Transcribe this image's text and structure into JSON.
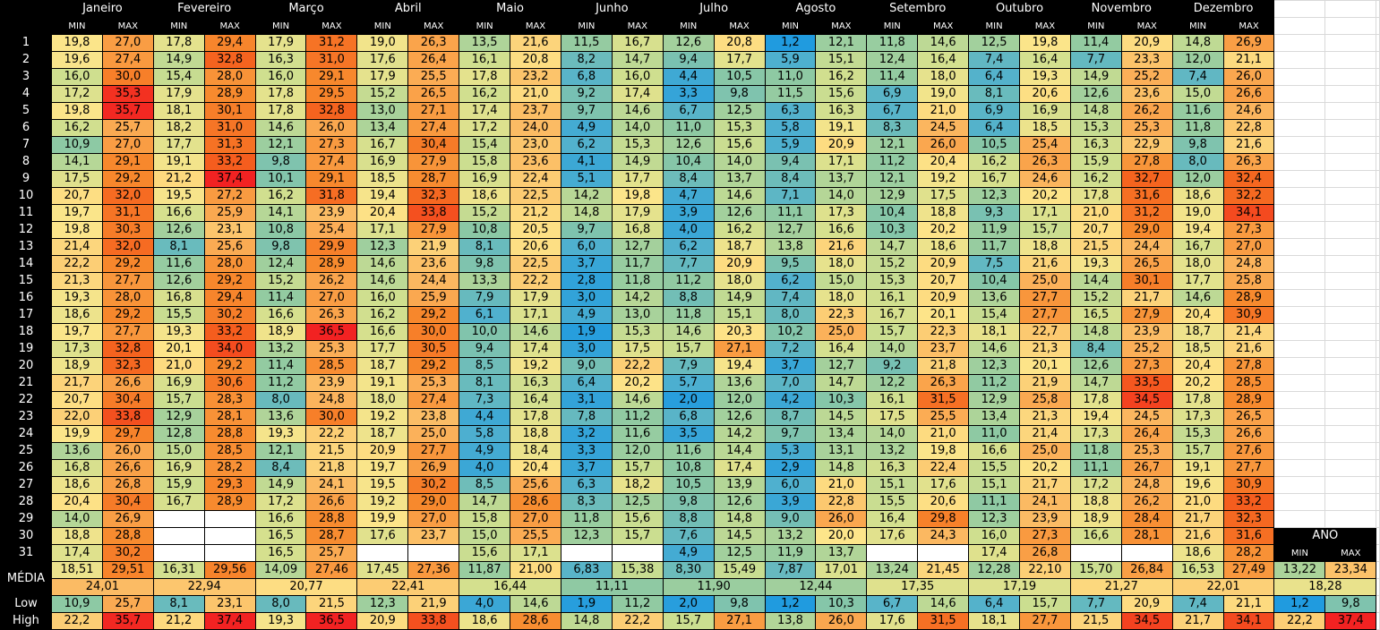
{
  "months": [
    "Janeiro",
    "Fevereiro",
    "Março",
    "Abril",
    "Maio",
    "Junho",
    "Julho",
    "Agosto",
    "Setembro",
    "Outubro",
    "Novembro",
    "Dezembro"
  ],
  "col_labels": [
    "MIN",
    "MAX"
  ],
  "days": [
    {
      "day": "1",
      "values": [
        "19,8",
        "27,0",
        "17,8",
        "29,4",
        "17,9",
        "31,2",
        "19,0",
        "26,3",
        "13,5",
        "21,6",
        "11,5",
        "16,7",
        "12,6",
        "20,8",
        "1,2",
        "12,1",
        "11,8",
        "14,6",
        "12,5",
        "19,8",
        "11,4",
        "20,9",
        "14,8",
        "26,9"
      ]
    },
    {
      "day": "2",
      "values": [
        "19,6",
        "27,4",
        "14,9",
        "32,8",
        "16,3",
        "31,0",
        "17,6",
        "26,4",
        "16,1",
        "20,8",
        "8,2",
        "14,7",
        "9,4",
        "17,7",
        "5,9",
        "15,1",
        "12,4",
        "16,4",
        "7,4",
        "16,4",
        "7,7",
        "23,3",
        "12,0",
        "21,1"
      ]
    },
    {
      "day": "3",
      "values": [
        "16,0",
        "30,0",
        "15,4",
        "28,0",
        "16,0",
        "29,1",
        "17,9",
        "25,5",
        "17,8",
        "23,2",
        "6,8",
        "16,0",
        "4,4",
        "10,5",
        "11,0",
        "16,2",
        "11,4",
        "18,0",
        "6,4",
        "19,3",
        "14,9",
        "25,2",
        "7,4",
        "26,0"
      ]
    },
    {
      "day": "4",
      "values": [
        "17,2",
        "35,3",
        "17,9",
        "28,9",
        "17,8",
        "29,5",
        "15,2",
        "26,5",
        "16,2",
        "21,0",
        "9,2",
        "17,4",
        "3,3",
        "9,8",
        "11,5",
        "15,6",
        "6,9",
        "19,0",
        "8,1",
        "20,6",
        "12,6",
        "23,6",
        "15,0",
        "26,6"
      ]
    },
    {
      "day": "5",
      "values": [
        "19,8",
        "35,7",
        "18,1",
        "30,1",
        "17,8",
        "32,8",
        "13,0",
        "27,1",
        "17,4",
        "23,7",
        "9,7",
        "14,6",
        "6,7",
        "12,5",
        "6,3",
        "16,3",
        "6,7",
        "21,0",
        "6,9",
        "16,9",
        "14,8",
        "26,2",
        "11,6",
        "24,6"
      ]
    },
    {
      "day": "6",
      "values": [
        "16,2",
        "25,7",
        "18,2",
        "31,0",
        "14,6",
        "26,0",
        "13,4",
        "27,4",
        "17,2",
        "24,0",
        "4,9",
        "14,0",
        "11,0",
        "15,3",
        "5,8",
        "19,1",
        "8,3",
        "24,5",
        "6,4",
        "18,5",
        "15,3",
        "25,3",
        "11,8",
        "22,8"
      ]
    },
    {
      "day": "7",
      "values": [
        "10,9",
        "27,0",
        "17,7",
        "31,3",
        "12,1",
        "27,3",
        "16,7",
        "30,4",
        "15,4",
        "23,0",
        "6,2",
        "15,3",
        "12,6",
        "15,6",
        "5,9",
        "20,9",
        "12,1",
        "26,0",
        "10,5",
        "25,4",
        "16,3",
        "22,9",
        "9,8",
        "21,6"
      ]
    },
    {
      "day": "8",
      "values": [
        "14,1",
        "29,1",
        "19,1",
        "33,2",
        "9,8",
        "27,4",
        "16,9",
        "27,9",
        "15,8",
        "23,6",
        "4,1",
        "14,9",
        "10,4",
        "14,0",
        "9,4",
        "17,1",
        "11,2",
        "20,4",
        "16,2",
        "26,3",
        "15,9",
        "27,8",
        "8,0",
        "26,3"
      ]
    },
    {
      "day": "9",
      "values": [
        "17,5",
        "29,2",
        "21,2",
        "37,4",
        "10,1",
        "29,1",
        "18,5",
        "28,7",
        "16,9",
        "22,4",
        "5,1",
        "17,7",
        "8,4",
        "13,7",
        "8,4",
        "13,7",
        "12,1",
        "19,2",
        "16,7",
        "24,6",
        "16,2",
        "32,7",
        "12,0",
        "32,4"
      ]
    },
    {
      "day": "10",
      "values": [
        "20,7",
        "32,0",
        "19,5",
        "27,2",
        "16,2",
        "31,8",
        "19,4",
        "32,3",
        "18,6",
        "22,5",
        "14,2",
        "19,8",
        "4,7",
        "14,6",
        "7,1",
        "14,0",
        "12,9",
        "17,5",
        "12,3",
        "20,2",
        "17,8",
        "31,6",
        "18,6",
        "32,2"
      ]
    },
    {
      "day": "11",
      "values": [
        "19,7",
        "31,1",
        "16,6",
        "25,9",
        "14,1",
        "23,9",
        "20,4",
        "33,8",
        "15,2",
        "21,2",
        "14,8",
        "17,9",
        "3,9",
        "12,6",
        "11,1",
        "17,3",
        "10,4",
        "18,8",
        "9,3",
        "17,1",
        "21,0",
        "31,2",
        "19,0",
        "34,1"
      ]
    },
    {
      "day": "12",
      "values": [
        "19,8",
        "30,3",
        "12,6",
        "23,1",
        "10,8",
        "25,4",
        "17,1",
        "27,9",
        "10,8",
        "20,5",
        "9,7",
        "16,8",
        "4,0",
        "16,2",
        "12,7",
        "16,6",
        "10,3",
        "20,2",
        "11,9",
        "15,7",
        "20,7",
        "29,0",
        "19,4",
        "27,3"
      ]
    },
    {
      "day": "13",
      "values": [
        "21,4",
        "32,0",
        "8,1",
        "25,6",
        "9,8",
        "29,9",
        "12,3",
        "21,9",
        "8,1",
        "20,6",
        "6,0",
        "12,7",
        "6,2",
        "18,7",
        "13,8",
        "21,6",
        "14,7",
        "18,6",
        "11,7",
        "18,8",
        "21,5",
        "24,4",
        "16,7",
        "27,0"
      ]
    },
    {
      "day": "14",
      "values": [
        "22,2",
        "29,2",
        "11,6",
        "28,0",
        "12,4",
        "28,9",
        "14,6",
        "23,6",
        "9,8",
        "22,5",
        "3,7",
        "11,7",
        "7,7",
        "20,9",
        "9,5",
        "18,0",
        "15,2",
        "20,9",
        "7,5",
        "21,6",
        "19,3",
        "26,5",
        "18,0",
        "24,8"
      ]
    },
    {
      "day": "15",
      "values": [
        "21,3",
        "27,7",
        "12,6",
        "29,2",
        "15,2",
        "26,2",
        "14,6",
        "24,4",
        "13,3",
        "22,2",
        "2,8",
        "11,8",
        "11,2",
        "18,0",
        "6,2",
        "15,0",
        "15,3",
        "20,7",
        "10,4",
        "25,0",
        "14,4",
        "30,1",
        "17,7",
        "25,8"
      ]
    },
    {
      "day": "16",
      "values": [
        "19,3",
        "28,0",
        "16,8",
        "29,4",
        "11,4",
        "27,0",
        "16,0",
        "25,9",
        "7,9",
        "17,9",
        "3,0",
        "14,2",
        "8,8",
        "14,9",
        "7,4",
        "18,0",
        "16,1",
        "20,9",
        "13,6",
        "27,7",
        "15,2",
        "21,7",
        "14,6",
        "28,9"
      ]
    },
    {
      "day": "17",
      "values": [
        "18,6",
        "29,2",
        "15,5",
        "30,2",
        "16,6",
        "26,3",
        "16,2",
        "29,2",
        "6,1",
        "17,1",
        "4,9",
        "13,0",
        "11,8",
        "15,1",
        "8,0",
        "22,3",
        "16,7",
        "20,1",
        "15,4",
        "27,7",
        "16,5",
        "27,9",
        "20,4",
        "30,9"
      ]
    },
    {
      "day": "18",
      "values": [
        "19,7",
        "27,7",
        "19,3",
        "33,2",
        "18,9",
        "36,5",
        "16,6",
        "30,0",
        "10,0",
        "14,6",
        "1,9",
        "15,3",
        "14,6",
        "20,3",
        "10,2",
        "25,0",
        "15,7",
        "22,3",
        "18,1",
        "22,7",
        "14,8",
        "23,9",
        "18,7",
        "21,4"
      ]
    },
    {
      "day": "19",
      "values": [
        "17,3",
        "32,8",
        "20,1",
        "34,0",
        "13,2",
        "25,3",
        "17,7",
        "30,5",
        "9,4",
        "17,4",
        "3,0",
        "17,5",
        "15,7",
        "27,1",
        "7,2",
        "16,4",
        "14,0",
        "23,7",
        "14,6",
        "21,3",
        "8,4",
        "25,2",
        "18,5",
        "21,6"
      ]
    },
    {
      "day": "20",
      "values": [
        "18,9",
        "32,3",
        "21,0",
        "29,2",
        "11,4",
        "28,5",
        "18,7",
        "29,2",
        "8,5",
        "19,2",
        "9,0",
        "22,2",
        "7,9",
        "19,4",
        "3,7",
        "12,7",
        "9,2",
        "21,8",
        "12,3",
        "20,1",
        "12,6",
        "27,3",
        "20,4",
        "27,8"
      ]
    },
    {
      "day": "21",
      "values": [
        "21,7",
        "26,6",
        "16,9",
        "30,6",
        "11,2",
        "23,9",
        "19,1",
        "25,3",
        "8,1",
        "16,3",
        "6,4",
        "20,2",
        "5,7",
        "13,6",
        "7,0",
        "14,7",
        "12,2",
        "26,3",
        "11,2",
        "21,9",
        "14,7",
        "33,5",
        "20,2",
        "28,5"
      ]
    },
    {
      "day": "22",
      "values": [
        "20,7",
        "30,4",
        "15,7",
        "28,3",
        "8,0",
        "24,8",
        "18,0",
        "27,4",
        "7,3",
        "16,4",
        "3,1",
        "14,6",
        "2,0",
        "12,0",
        "4,2",
        "10,3",
        "16,1",
        "31,5",
        "12,9",
        "25,8",
        "17,8",
        "34,5",
        "17,8",
        "28,9"
      ]
    },
    {
      "day": "23",
      "values": [
        "22,0",
        "33,8",
        "12,9",
        "28,1",
        "13,6",
        "30,0",
        "19,2",
        "23,8",
        "4,4",
        "17,8",
        "7,8",
        "11,2",
        "6,8",
        "12,6",
        "8,7",
        "14,5",
        "17,5",
        "25,5",
        "13,4",
        "21,3",
        "19,4",
        "24,5",
        "17,3",
        "26,5"
      ]
    },
    {
      "day": "24",
      "values": [
        "19,9",
        "29,7",
        "12,8",
        "28,8",
        "19,3",
        "22,2",
        "18,7",
        "25,0",
        "5,8",
        "18,8",
        "3,2",
        "11,6",
        "3,5",
        "14,2",
        "9,7",
        "13,4",
        "14,0",
        "21,0",
        "11,0",
        "21,4",
        "17,3",
        "26,4",
        "15,3",
        "26,6"
      ]
    },
    {
      "day": "25",
      "values": [
        "13,6",
        "26,0",
        "15,0",
        "28,5",
        "12,1",
        "21,5",
        "20,9",
        "27,7",
        "4,9",
        "18,4",
        "3,3",
        "12,0",
        "11,6",
        "14,4",
        "5,3",
        "13,1",
        "13,2",
        "19,8",
        "16,6",
        "25,0",
        "11,8",
        "25,3",
        "15,7",
        "27,6"
      ]
    },
    {
      "day": "26",
      "values": [
        "16,8",
        "26,6",
        "16,9",
        "28,2",
        "8,4",
        "21,8",
        "19,7",
        "26,9",
        "4,0",
        "20,4",
        "3,7",
        "15,7",
        "10,8",
        "17,4",
        "2,9",
        "14,8",
        "16,3",
        "22,4",
        "15,5",
        "20,2",
        "11,1",
        "26,7",
        "19,1",
        "27,7"
      ]
    },
    {
      "day": "27",
      "values": [
        "18,6",
        "26,8",
        "15,9",
        "29,3",
        "14,9",
        "24,1",
        "19,5",
        "30,2",
        "8,5",
        "25,6",
        "6,3",
        "18,2",
        "10,5",
        "13,9",
        "6,0",
        "21,0",
        "15,1",
        "17,6",
        "15,1",
        "21,7",
        "17,2",
        "24,8",
        "19,6",
        "30,9"
      ]
    },
    {
      "day": "28",
      "values": [
        "20,4",
        "30,4",
        "16,7",
        "28,9",
        "17,2",
        "26,6",
        "19,2",
        "29,0",
        "14,7",
        "28,6",
        "8,3",
        "12,5",
        "9,8",
        "12,6",
        "3,9",
        "22,8",
        "15,5",
        "20,6",
        "11,1",
        "24,1",
        "18,8",
        "26,2",
        "21,0",
        "33,2"
      ]
    },
    {
      "day": "29",
      "values": [
        "14,0",
        "26,9",
        null,
        null,
        "16,6",
        "28,8",
        "19,9",
        "27,0",
        "15,8",
        "27,0",
        "11,8",
        "15,6",
        "8,8",
        "14,8",
        "9,0",
        "26,0",
        "16,4",
        "29,8",
        "12,3",
        "23,9",
        "18,9",
        "28,4",
        "21,7",
        "32,3"
      ]
    },
    {
      "day": "30",
      "values": [
        "18,8",
        "28,8",
        null,
        null,
        "16,5",
        "28,7",
        "17,6",
        "23,7",
        "15,0",
        "25,5",
        "12,3",
        "15,7",
        "7,6",
        "14,5",
        "13,2",
        "20,0",
        "17,6",
        "24,3",
        "16,0",
        "27,3",
        "16,6",
        "28,1",
        "21,6",
        "31,6"
      ]
    },
    {
      "day": "31",
      "values": [
        "17,4",
        "30,2",
        null,
        null,
        "16,5",
        "25,7",
        null,
        null,
        "15,6",
        "17,1",
        null,
        null,
        "4,9",
        "12,5",
        "11,9",
        "13,7",
        null,
        null,
        "17,4",
        "26,8",
        null,
        null,
        "18,6",
        "28,2"
      ]
    }
  ],
  "year": {
    "title": "ANO"
  },
  "media": {
    "label": "MÉDIA",
    "values": [
      "18,51",
      "29,51",
      "16,31",
      "29,56",
      "14,09",
      "27,46",
      "17,45",
      "27,36",
      "11,87",
      "21,00",
      "6,83",
      "15,38",
      "8,30",
      "15,49",
      "7,87",
      "17,01",
      "13,24",
      "21,45",
      "12,28",
      "22,10",
      "15,70",
      "26,84",
      "16,53",
      "27,49"
    ],
    "year_values": [
      "13,22",
      "23,34"
    ],
    "means": [
      "24,01",
      "22,94",
      "20,77",
      "22,41",
      "16,44",
      "11,11",
      "11,90",
      "12,44",
      "17,35",
      "17,19",
      "21,27",
      "22,01"
    ],
    "year_mean": "18,28"
  },
  "low": {
    "label": "Low",
    "values": [
      "10,9",
      "25,7",
      "8,1",
      "23,1",
      "8,0",
      "21,5",
      "12,3",
      "21,9",
      "4,0",
      "14,6",
      "1,9",
      "11,2",
      "2,0",
      "9,8",
      "1,2",
      "10,3",
      "6,7",
      "14,6",
      "6,4",
      "15,7",
      "7,7",
      "20,9",
      "7,4",
      "21,1"
    ],
    "year_values": [
      "1,2",
      "9,8"
    ]
  },
  "high": {
    "label": "High",
    "values": [
      "22,2",
      "35,7",
      "21,2",
      "37,4",
      "19,3",
      "36,5",
      "20,9",
      "33,8",
      "18,6",
      "28,6",
      "14,8",
      "22,2",
      "15,7",
      "27,1",
      "13,8",
      "26,0",
      "17,6",
      "31,5",
      "18,1",
      "27,7",
      "21,5",
      "34,5",
      "21,7",
      "34,1"
    ],
    "year_values": [
      "22,2",
      "37,4"
    ]
  }
}
